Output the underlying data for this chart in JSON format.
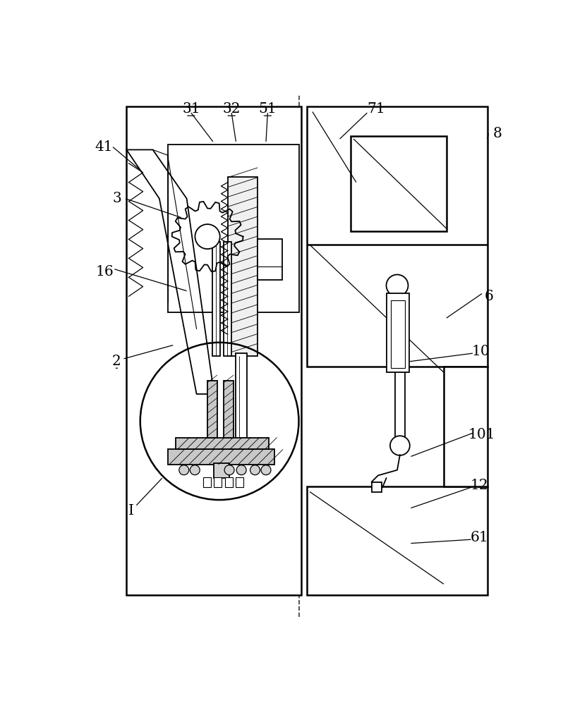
{
  "bg_color": "#ffffff",
  "line_color": "#000000",
  "fig_width": 8.15,
  "fig_height": 10.0
}
